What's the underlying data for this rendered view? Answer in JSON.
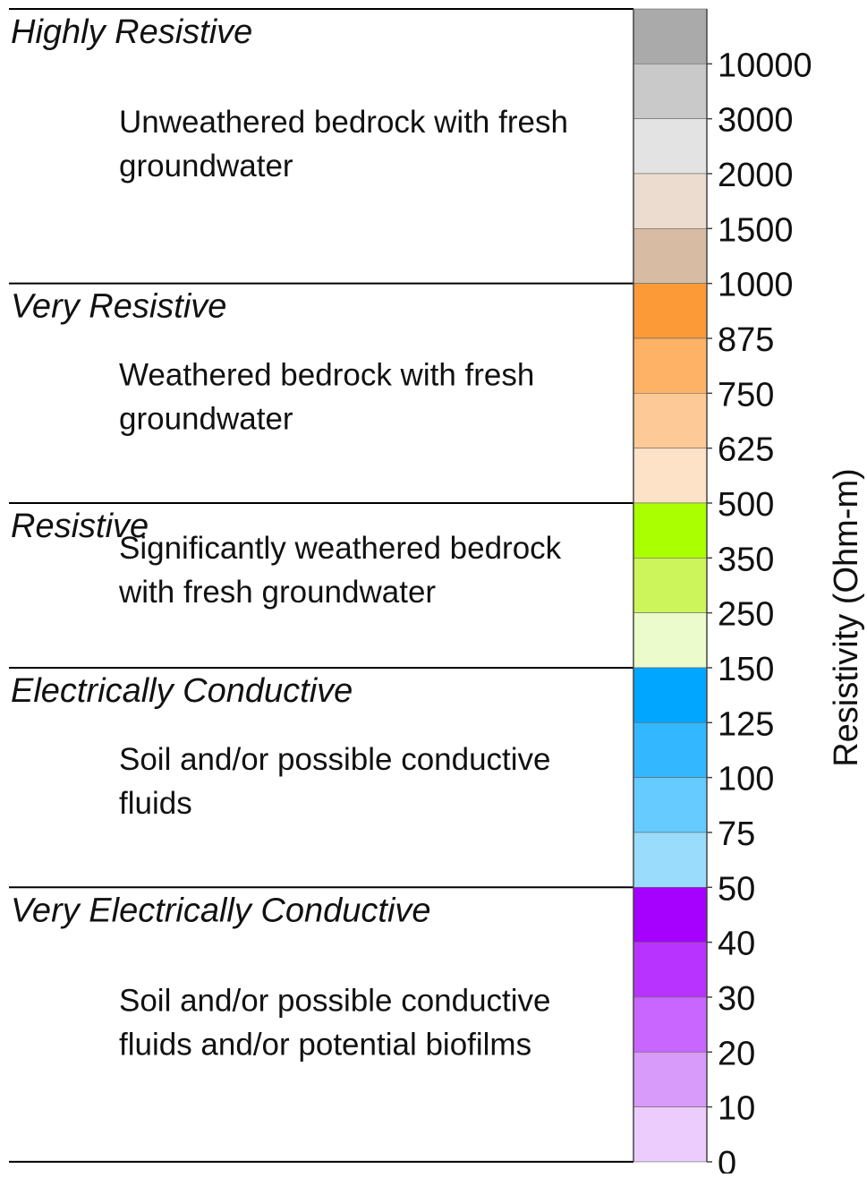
{
  "sections": [
    {
      "title": "Highly Resistive",
      "description": [
        "Unweathered bedrock with fresh",
        "groundwater"
      ],
      "colors": [
        "#aaaaaa",
        "#c9c9c9",
        "#e3e3e3",
        "#ebdccf",
        "#d7bca3"
      ]
    },
    {
      "title": "Very Resistive",
      "description": [
        "Weathered bedrock with fresh",
        "groundwater"
      ],
      "colors": [
        "#fd9a38",
        "#fdb266",
        "#fdca97",
        "#fee2c8"
      ]
    },
    {
      "title": "Resistive",
      "description": [
        "Significantly weathered bedrock",
        "with fresh groundwater"
      ],
      "colors": [
        "#aaff00",
        "#ccf55c",
        "#ecfbcc"
      ]
    },
    {
      "title": "Electrically Conductive",
      "description": [
        "Soil and/or possible conductive",
        "fluids"
      ],
      "colors": [
        "#00a6ff",
        "#33b8ff",
        "#66ccff",
        "#99dcfb"
      ]
    },
    {
      "title": "Very Electrically Conductive",
      "description": [
        "Soil and/or possible conductive",
        "fluids and/or potential biofilms"
      ],
      "colors": [
        "#a600ff",
        "#b833ff",
        "#c866ff",
        "#d99bfa",
        "#ecccfc"
      ]
    }
  ],
  "colorbar": {
    "ticks": [
      10000,
      3000,
      2000,
      1500,
      1000,
      875,
      750,
      625,
      500,
      350,
      250,
      150,
      125,
      100,
      75,
      50,
      40,
      30,
      20,
      10,
      0
    ],
    "label": "Resistivity (Ohm-m)"
  }
}
